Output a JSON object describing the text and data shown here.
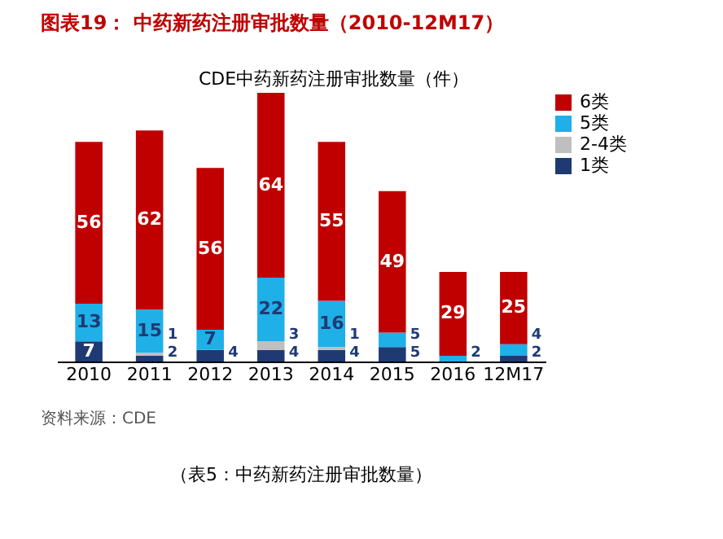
{
  "chart_data": {
    "type": "bar",
    "stacked": true,
    "title": "图表19：  中药新药注册审批数量（2010-12M17）",
    "subtitle": "CDE中药新药注册审批数量（件）",
    "categories": [
      "2010",
      "2011",
      "2012",
      "2013",
      "2014",
      "2015",
      "2016",
      "12M17"
    ],
    "series": [
      {
        "name": "1类",
        "color": "#1f3a73",
        "values": [
          7,
          2,
          4,
          4,
          4,
          5,
          null,
          2
        ]
      },
      {
        "name": "2-4类",
        "color": "#bfbfbf",
        "values": [
          null,
          1,
          null,
          3,
          1,
          null,
          null,
          null
        ]
      },
      {
        "name": "5类",
        "color": "#1fb0e8",
        "values": [
          13,
          15,
          7,
          22,
          16,
          5,
          2,
          4
        ]
      },
      {
        "name": "6类",
        "color": "#c00000",
        "values": [
          56,
          62,
          56,
          64,
          55,
          49,
          29,
          25
        ]
      }
    ],
    "data_labels": true,
    "legend": "right",
    "tick_labels": "x",
    "grid": false,
    "annotations": [
      "资料来源：CDE",
      "（表5：中药新药注册审批数量）"
    ]
  }
}
